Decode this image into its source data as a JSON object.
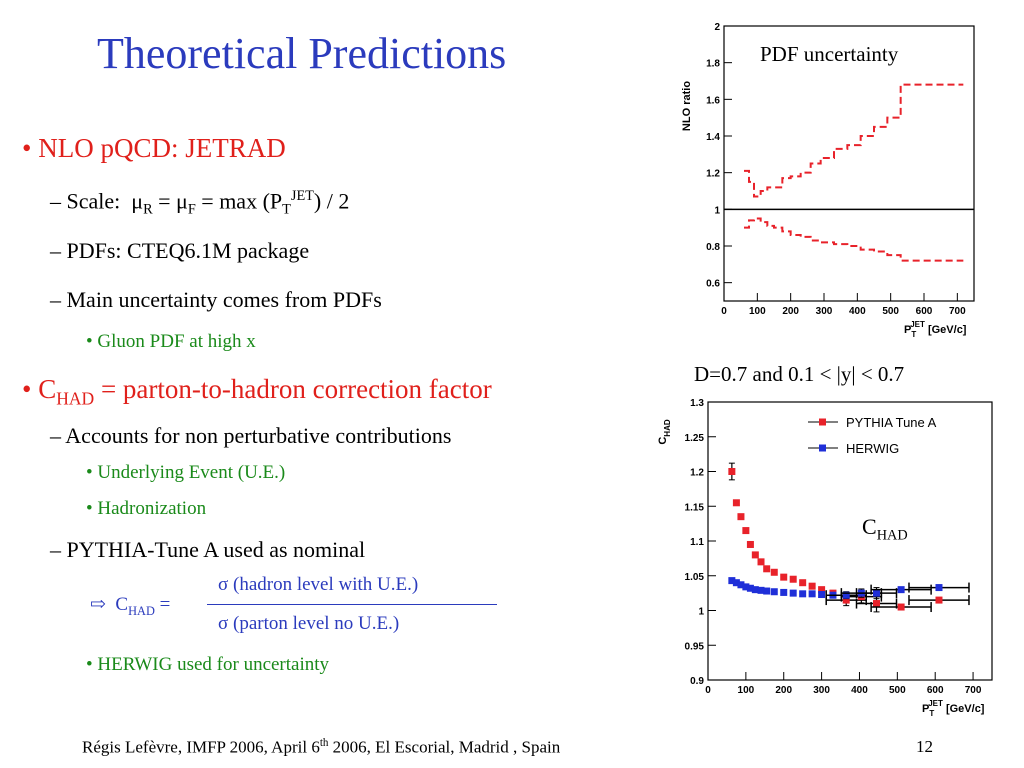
{
  "slide": {
    "title": "Theoretical Predictions",
    "page_number": "12",
    "footer": {
      "text_a": "Régis Lefèvre, IMFP 2006, April 6",
      "sup": "th",
      "text_b": " 2006, El Escorial, Madrid , Spain"
    }
  },
  "bullets": {
    "nlo": "NLO pQCD: JETRAD",
    "scale_label": "Scale:",
    "scale_mu": "μ",
    "scale_R": "R",
    "scale_eq1": " = ",
    "scale_F": "F",
    "scale_eq2": " = max (P",
    "scale_T": "T",
    "scale_JET": "JET",
    "scale_end": ") / 2",
    "pdfs": "PDFs: CTEQ6.1M package",
    "main_unc": "Main uncertainty comes from PDFs",
    "gluon": "Gluon PDF at high x",
    "chad_C": "C",
    "chad_sub": "HAD",
    "chad_rest": " = parton-to-hadron correction factor",
    "accounts": "Accounts for non perturbative contributions",
    "ue": "Underlying Event (U.E.)",
    "hadronization": "Hadronization",
    "pythia_nominal": "PYTHIA-Tune A used as nominal",
    "formula_arrow": "⇨",
    "formula_C": "C",
    "formula_sub": "HAD",
    "formula_eq": " =",
    "formula_num": "σ (hadron level with U.E.)",
    "formula_den": "σ (parton level no U.E.)",
    "herwig": "HERWIG used for uncertainty"
  },
  "chart_data": [
    {
      "type": "line",
      "title": "PDF uncertainty",
      "ylabel": "NLO ratio",
      "xlabel": "P_T^JET [GeV/c]",
      "xlim": [
        0,
        750
      ],
      "ylim": [
        0.5,
        2.0
      ],
      "xticks": [
        0,
        100,
        200,
        300,
        400,
        500,
        600,
        700
      ],
      "yticks": [
        0.6,
        0.8,
        1.0,
        1.2,
        1.4,
        1.6,
        1.8,
        2.0
      ],
      "ytick_labels": [
        "0.6",
        "0.8",
        "1",
        "1.2",
        "1.4",
        "1.6",
        "1.8",
        "2"
      ],
      "reference_line": 1.0,
      "series": [
        {
          "color": "#e8222a",
          "style": "dashed-step",
          "x": [
            60,
            75,
            90,
            110,
            130,
            150,
            175,
            200,
            230,
            260,
            290,
            330,
            370,
            410,
            450,
            490,
            530,
            580,
            620,
            700
          ],
          "y": [
            1.21,
            1.15,
            1.07,
            1.1,
            1.12,
            1.12,
            1.17,
            1.18,
            1.2,
            1.25,
            1.28,
            1.33,
            1.35,
            1.4,
            1.45,
            1.5,
            1.68,
            1.68,
            1.68,
            1.68
          ]
        },
        {
          "color": "#e8222a",
          "style": "dashed-step",
          "x": [
            60,
            75,
            90,
            110,
            130,
            150,
            175,
            200,
            230,
            260,
            290,
            330,
            370,
            410,
            450,
            490,
            530,
            580,
            620,
            700
          ],
          "y": [
            0.9,
            0.94,
            0.95,
            0.93,
            0.91,
            0.9,
            0.88,
            0.86,
            0.85,
            0.83,
            0.82,
            0.81,
            0.8,
            0.78,
            0.77,
            0.75,
            0.72,
            0.72,
            0.72,
            0.72
          ]
        }
      ]
    },
    {
      "type": "scatter",
      "title": "D=0.7 and 0.1 < |y| < 0.7",
      "annotation_C": "C",
      "annotation_sub": "HAD",
      "ylabel": "C_HAD",
      "xlabel": "P_T^JET [GeV/c]",
      "xlim": [
        0,
        750
      ],
      "ylim": [
        0.9,
        1.3
      ],
      "xticks": [
        0,
        100,
        200,
        300,
        400,
        500,
        600,
        700
      ],
      "yticks": [
        0.9,
        0.95,
        1.0,
        1.05,
        1.1,
        1.15,
        1.2,
        1.25,
        1.3
      ],
      "ytick_labels": [
        "0.9",
        "0.95",
        "1",
        "1.05",
        "1.1",
        "1.15",
        "1.2",
        "1.25",
        "1.3"
      ],
      "legend": "top-right",
      "series": [
        {
          "name": "PYTHIA Tune A",
          "color": "#e8222a",
          "x": [
            63,
            75,
            87,
            100,
            112,
            125,
            140,
            155,
            175,
            200,
            225,
            250,
            275,
            300,
            330,
            365,
            405,
            445,
            510,
            610
          ],
          "y": [
            1.2,
            1.155,
            1.135,
            1.115,
            1.095,
            1.08,
            1.07,
            1.06,
            1.055,
            1.048,
            1.045,
            1.04,
            1.035,
            1.03,
            1.025,
            1.015,
            1.02,
            1.01,
            1.005,
            1.015
          ],
          "err": [
            0.012,
            0,
            0,
            0,
            0,
            0,
            0,
            0,
            0,
            0,
            0,
            0,
            0,
            0,
            0,
            0.008,
            0.009,
            0.012,
            0.003,
            0.003
          ]
        },
        {
          "name": "HERWIG",
          "color": "#1f2fd8",
          "x": [
            63,
            75,
            87,
            100,
            112,
            125,
            140,
            155,
            175,
            200,
            225,
            250,
            275,
            300,
            330,
            365,
            405,
            445,
            510,
            610
          ],
          "y": [
            1.043,
            1.04,
            1.037,
            1.034,
            1.032,
            1.03,
            1.029,
            1.028,
            1.027,
            1.026,
            1.025,
            1.024,
            1.024,
            1.023,
            1.022,
            1.022,
            1.025,
            1.025,
            1.03,
            1.033
          ],
          "err": [
            0,
            0,
            0,
            0,
            0,
            0,
            0,
            0,
            0,
            0,
            0,
            0,
            0,
            0,
            0,
            0.005,
            0.006,
            0.008,
            0.003,
            0.003
          ]
        }
      ]
    }
  ]
}
